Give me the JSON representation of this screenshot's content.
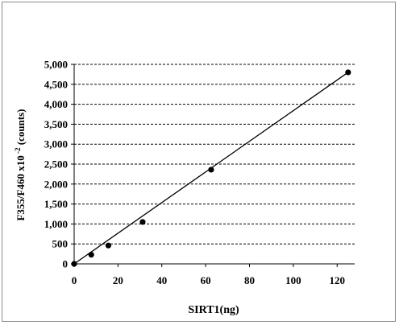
{
  "chart_data": {
    "type": "scatter",
    "title": "",
    "xlabel": "SIRT1(ng)",
    "ylabel": {
      "prefix": "F355/F460 x10",
      "superscript": " -2",
      "suffix": " (counts)"
    },
    "xlim": [
      0,
      128
    ],
    "ylim": [
      0,
      5000
    ],
    "xticks": [
      0,
      20,
      40,
      60,
      80,
      100,
      120
    ],
    "xtick_labels": [
      "0",
      "20",
      "40",
      "60",
      "80",
      "100",
      "120"
    ],
    "yticks": [
      0,
      500,
      1000,
      1500,
      2000,
      2500,
      3000,
      3500,
      4000,
      4500,
      5000
    ],
    "ytick_labels": [
      "0",
      "500",
      "1,000",
      "1,500",
      "2,000",
      "2,500",
      "3,000",
      "3,500",
      "4,000",
      "4,500",
      "5,000"
    ],
    "grid": "horizontal-dashed",
    "legend": "none",
    "series": [
      {
        "x": [
          0,
          7.8,
          15.6,
          31.25,
          62.5,
          125
        ],
        "y": [
          0,
          230,
          460,
          1050,
          2360,
          4800
        ],
        "marker": "circle",
        "color": "#000000"
      }
    ],
    "trendline": {
      "from": [
        0,
        0
      ],
      "to": [
        125,
        4800
      ],
      "color": "#000000"
    }
  }
}
